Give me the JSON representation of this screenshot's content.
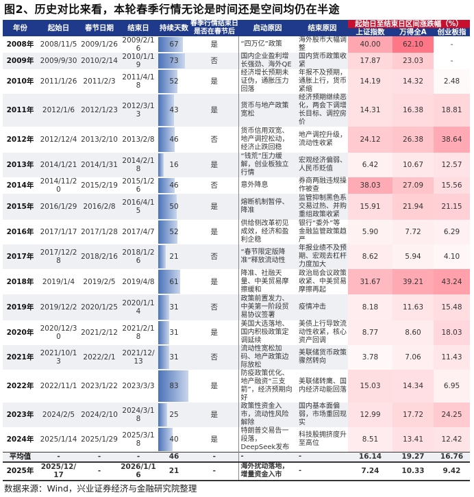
{
  "title": "图2、历史对比来看，本轮春季行情无论是时间还是空间均仍在半途",
  "headers": {
    "year": "年份",
    "start": "起始日",
    "spring": "春节日期",
    "end": "结束日",
    "days": "持续天数",
    "after": "春季行情结束日是否在春节后",
    "start_reason": "启动原因",
    "end_reason": "结束原因",
    "range": "起始日至结束日区间涨跌幅（%）",
    "sh": "上证指数",
    "wind": "万得全A",
    "cyb": "创业板指"
  },
  "rows": [
    {
      "year": "2008年",
      "start": "2008/11/5",
      "spring": "2009/1/26",
      "end": "2009/2/16",
      "days": "67",
      "after": "是",
      "sr": "“四万亿”政策",
      "er": "海外股市大幅调整",
      "sh": "40.00",
      "wind": "62.10",
      "cyb": "-"
    },
    {
      "year": "2009年",
      "start": "2009/9/30",
      "spring": "2010/2/14",
      "end": "2010/1/19",
      "days": "73",
      "after": "否",
      "sr": "国内企业盈利增长强劲、海外QE",
      "er": "国内货币政策收紧",
      "sh": "17.87",
      "wind": "23.03",
      "cyb": "-"
    },
    {
      "year": "2010年",
      "start": "2011/1/26",
      "spring": "2011/2/3",
      "end": "2011/4/18",
      "days": "52",
      "after": "是",
      "sr": "经济增长预期未证伪，通胀压力回落",
      "er": "年报不及预期，通胀上行，货币紧缩",
      "sh": "14.19",
      "wind": "14.32",
      "cyb": "2.48"
    },
    {
      "year": "2011年",
      "start": "2012/1/6",
      "spring": "2012/1/23",
      "end": "2012/3/13",
      "days": "43",
      "after": "是",
      "sr": "货币与地产政策宽松",
      "er": "经济预期继续恶化，两会下调增长目标、调控房价",
      "sh": "14.31",
      "wind": "16.38",
      "cyb": "18.81"
    },
    {
      "year": "2012年",
      "start": "2012/12/4",
      "spring": "2013/2/10",
      "end": "2013/2/8",
      "days": "46",
      "after": "否",
      "sr": "货币信用双宽、地产调控松动，经济止跌回稳",
      "er": "地产调控升级，流动性收紧",
      "sh": "24.12",
      "wind": "26.38",
      "cyb": "38.64"
    },
    {
      "year": "2013年",
      "start": "2014/1/21",
      "spring": "2014/1/31",
      "end": "2014/2/18",
      "days": "16",
      "after": "是",
      "sr": "“钱荒”压力缓解，创业板独立行情",
      "er": "宏观经济偏弱、人民币贬值",
      "sh": "6.42",
      "wind": "10.67",
      "cyb": "12.57"
    },
    {
      "year": "2014年",
      "start": "2014/11/20",
      "spring": "2015/2/19",
      "end": "2015/1/26",
      "days": "46",
      "after": "否",
      "sr": "意外降息",
      "er": "券商两融违规操作被查",
      "sh": "38.03",
      "wind": "27.09",
      "cyb": "15.56"
    },
    {
      "year": "2015年",
      "start": "2016/1/29",
      "spring": "2016/2/8",
      "end": "2016/4/15",
      "days": "50",
      "after": "是",
      "sr": "熔断机制暂停、降准",
      "er": "监管抑制黑色系交易过热、并购重组政策收紧",
      "sh": "15.91",
      "wind": "21.94",
      "cyb": "21.15"
    },
    {
      "year": "2016年",
      "start": "2017/1/17",
      "spring": "2017/1/28",
      "end": "2017/4/7",
      "days": "52",
      "after": "是",
      "sr": "供给侧改革初见成效，经济和盈利企稳",
      "er": "银行“委外”等金融监管政策趋严",
      "sh": "5.90",
      "wind": "7.72",
      "cyb": "6.29"
    },
    {
      "year": "2017年",
      "start": "2017/12/28",
      "spring": "2018/2/16",
      "end": "2018/1/26",
      "days": "21",
      "after": "否",
      "sr": "“春节限定版降准”释放流动性",
      "er": "年报业绩不及预期、宏观去杠杆力度加大",
      "sh": "8.62",
      "wind": "5.94",
      "cyb": "4.10"
    },
    {
      "year": "2018年",
      "start": "2019/1/4",
      "spring": "2019/2/5",
      "end": "2019/4/8",
      "days": "61",
      "after": "是",
      "sr": "降准、社融天量、中美贸易摩擦缓和",
      "er": "政治局会议政策收紧、中美贸易摩擦再起",
      "sh": "31.67",
      "wind": "39.21",
      "cyb": "43.24"
    },
    {
      "year": "2019年",
      "start": "2019/12/2",
      "spring": "2020/1/25",
      "end": "2020/1/14",
      "days": "31",
      "after": "否",
      "sr": "政策前置发力、中美第一阶段贸易协议签署",
      "er": "疫情冲击",
      "sh": "8.18",
      "wind": "11.63",
      "cyb": "15.48"
    },
    {
      "year": "2020年",
      "start": "2020/12/30",
      "spring": "2021/2/12",
      "end": "2021/2/18",
      "days": "31",
      "after": "是",
      "sr": "美国大选落地、国内积极政策定调延续",
      "er": "美债上行导致流动性收紧，核心资产回调",
      "sh": "8.77",
      "wind": "8.60",
      "cyb": "18.03"
    },
    {
      "year": "2021年",
      "start": "2021/10/13",
      "spring": "2022/2/1",
      "end": "2021/12/13",
      "days": "31",
      "after": "否",
      "sr": "流动性宽松加码、地产政策边际放松",
      "er": "美联储货币政策骤然转向",
      "sh": "3.78",
      "wind": "7.06",
      "cyb": "11.43"
    },
    {
      "year": "2022年",
      "start": "2022/11/1",
      "spring": "2023/1/22",
      "end": "2023/3/3",
      "days": "83",
      "after": "是",
      "sr": "防疫政策优化、地产融资“三支箭”，经济预期向好",
      "er": "美联储转鹰、国内经济动能回落",
      "sh": "15.03",
      "wind": "14.34",
      "cyb": "6.95"
    },
    {
      "year": "2023年",
      "start": "2024/2/5",
      "spring": "2024/2/10",
      "end": "2024/3/18",
      "days": "25",
      "after": "是",
      "sr": "政策性资金入市，流动性风险解除",
      "er": "国内基本面偏弱，市场重回现实",
      "sh": "12.99",
      "wind": "17.72",
      "cyb": "24.25"
    },
    {
      "year": "2024年",
      "start": "2025/1/14",
      "spring": "2025/1/29",
      "end": "2025/3/18",
      "days": "40",
      "after": "是",
      "sr": "特朗普交易告一段落，DeepSeek发布",
      "er": "科技股拥挤度升至高位",
      "sh": "8.51",
      "wind": "13.41",
      "cyb": "12.42"
    }
  ],
  "average": {
    "label": "平均值",
    "start": "-",
    "spring": "-",
    "end": "-",
    "days": "46",
    "after": "-",
    "sr": "-",
    "er": "-",
    "sh": "16.14",
    "wind": "19.27",
    "cyb": "16.76"
  },
  "current": {
    "year": "2025年",
    "start": "2025/12/17",
    "spring": "-",
    "end": "2026/1/16",
    "days": "21",
    "after": "-",
    "sr": "海外扰动落地，增量资金入市",
    "er": "-",
    "sh": "7.24",
    "wind": "10.33",
    "cyb": "9.42"
  },
  "heat_color": "#f07080",
  "days_max": 83,
  "source": "数据来源：Wind，兴业证券经济与金融研究院整理"
}
